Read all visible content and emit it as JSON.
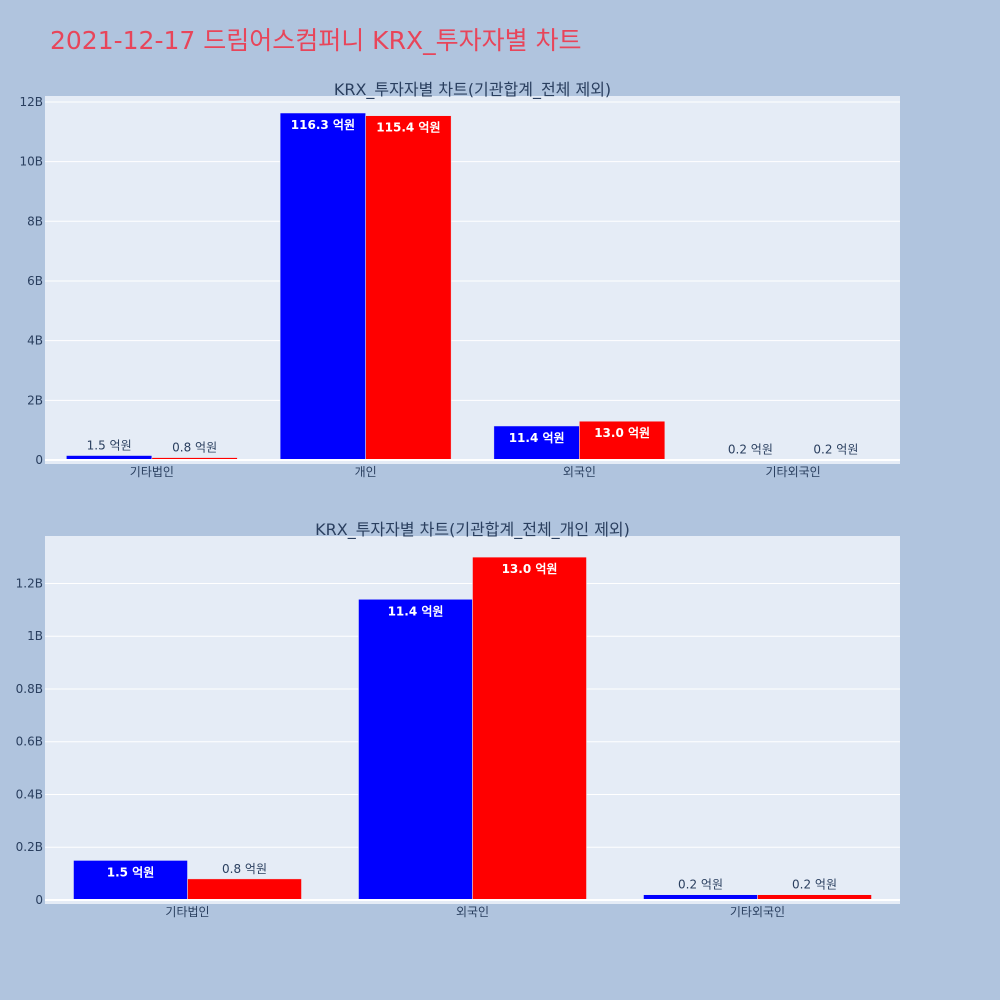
{
  "title": "2021-12-17 드림어스컴퍼니 KRX_투자자별 차트",
  "colors": {
    "series_a": "#0000ff",
    "series_b": "#ff0000",
    "plot_bg": "#e5ecf6",
    "page_bg": "#b0c4de"
  },
  "chart_data": [
    {
      "type": "bar",
      "title": "KRX_투자자별 차트(기관합계_전체 제외)",
      "categories": [
        "기타법인",
        "개인",
        "외국인",
        "기타외국인"
      ],
      "ylim": [
        0,
        12200000000
      ],
      "yticks": [
        0,
        2000000000,
        4000000000,
        6000000000,
        8000000000,
        10000000000,
        12000000000
      ],
      "ytick_labels": [
        "0",
        "2B",
        "4B",
        "6B",
        "8B",
        "10B",
        "12B"
      ],
      "grid": true,
      "series": [
        {
          "color": "#0000ff",
          "values": [
            150000000,
            11630000000,
            1140000000,
            20000000
          ],
          "labels": [
            "1.5 억원",
            "116.3 억원",
            "11.4 억원",
            "0.2 억원"
          ]
        },
        {
          "color": "#ff0000",
          "values": [
            80000000,
            11540000000,
            1300000000,
            20000000
          ],
          "labels": [
            "0.8 억원",
            "115.4 억원",
            "13.0 억원",
            "0.2 억원"
          ]
        }
      ]
    },
    {
      "type": "bar",
      "title": "KRX_투자자별 차트(기관합계_전체_개인 제외)",
      "categories": [
        "기타법인",
        "외국인",
        "기타외국인"
      ],
      "ylim": [
        0,
        1380000000
      ],
      "yticks": [
        0,
        200000000,
        400000000,
        600000000,
        800000000,
        1000000000,
        1200000000
      ],
      "ytick_labels": [
        "0",
        "0.2B",
        "0.4B",
        "0.6B",
        "0.8B",
        "1B",
        "1.2B"
      ],
      "grid": true,
      "series": [
        {
          "color": "#0000ff",
          "values": [
            150000000,
            1140000000,
            20000000
          ],
          "labels": [
            "1.5 억원",
            "11.4 억원",
            "0.2 억원"
          ]
        },
        {
          "color": "#ff0000",
          "values": [
            80000000,
            1300000000,
            20000000
          ],
          "labels": [
            "0.8 억원",
            "13.0 억원",
            "0.2 억원"
          ]
        }
      ]
    }
  ]
}
